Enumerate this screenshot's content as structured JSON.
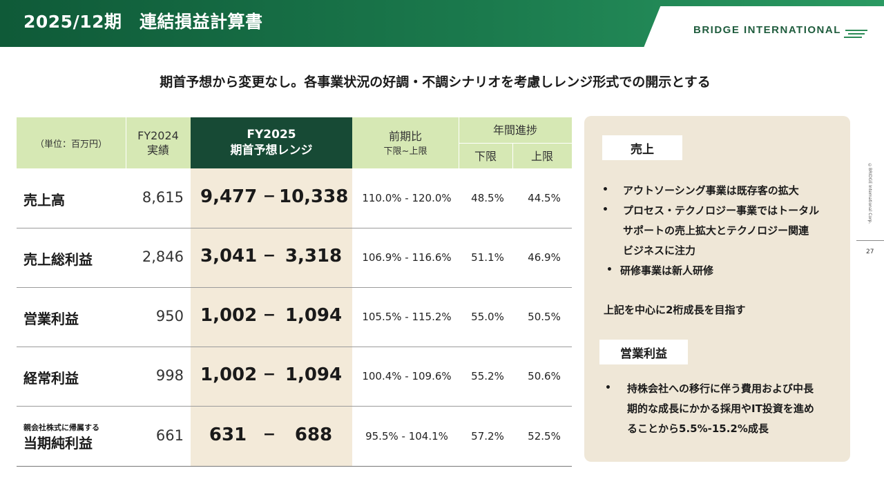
{
  "header": {
    "title": "2025/12期　連結損益計算書",
    "logo_text": "BRIDGE INTERNATIONAL"
  },
  "side": {
    "copyright": "©BRIDGE International Corp.",
    "page_number": "27"
  },
  "subtitle": "期首予想から変更なし。各事業状況の好調・不調シナリオを考慮しレンジ形式での開示とする",
  "table": {
    "unit": "（単位：百万円）",
    "col_fy2024_line1": "FY2024",
    "col_fy2024_line2": "実績",
    "col_fy2025_line1": "FY2025",
    "col_fy2025_line2": "期首予想レンジ",
    "col_yoy_line1": "前期比",
    "col_yoy_line2": "下限~上限",
    "col_progress": "年間進捗",
    "col_lower": "下限",
    "col_upper": "上限",
    "range_dash": "−",
    "rows": [
      {
        "label": "売上高",
        "fy2024": "8,615",
        "low": "9,477",
        "high": "10,338",
        "yoy": "110.0% - 120.0%",
        "prog_low": "48.5%",
        "prog_high": "44.5%"
      },
      {
        "label": "売上総利益",
        "fy2024": "2,846",
        "low": "3,041",
        "high": "3,318",
        "yoy": "106.9% - 116.6%",
        "prog_low": "51.1%",
        "prog_high": "46.9%"
      },
      {
        "label": "営業利益",
        "fy2024": "950",
        "low": "1,002",
        "high": "1,094",
        "yoy": "105.5% - 115.2%",
        "prog_low": "55.0%",
        "prog_high": "50.5%"
      },
      {
        "label": "経常利益",
        "fy2024": "998",
        "low": "1,002",
        "high": "1,094",
        "yoy": "100.4% - 109.6%",
        "prog_low": "55.2%",
        "prog_high": "50.6%"
      },
      {
        "label_small": "親会社株式に帰属する",
        "label": "当期純利益",
        "fy2024": "661",
        "low": "631",
        "high": "688",
        "yoy": "95.5% - 104.1%",
        "prog_low": "57.2%",
        "prog_high": "52.5%"
      }
    ]
  },
  "panel": {
    "sales_tag": "売上",
    "sales_bullets": [
      "アウトソーシング事業は既存客の拡大",
      "プロセス・テクノロジー事業ではトータル",
      "サポートの売上拡大とテクノロジー関連",
      "ビジネスに注力",
      "研修事業は新人研修"
    ],
    "bullet_mark": "•",
    "sales_summary": "上記を中心に2桁成長を目指す",
    "op_tag": "営業利益",
    "op_lines": [
      "持株会社への移行に伴う費用および中長",
      "期的な成長にかかる採用やIT投資を進め",
      "ることから5.5%-15.2%成長"
    ]
  },
  "colors": {
    "header_green": "#1b7a4d",
    "table_head_green": "#d6e8b4",
    "table_head_dark": "#174a35",
    "highlight": "#f3ead9",
    "panel_bg": "#efe7d7"
  }
}
